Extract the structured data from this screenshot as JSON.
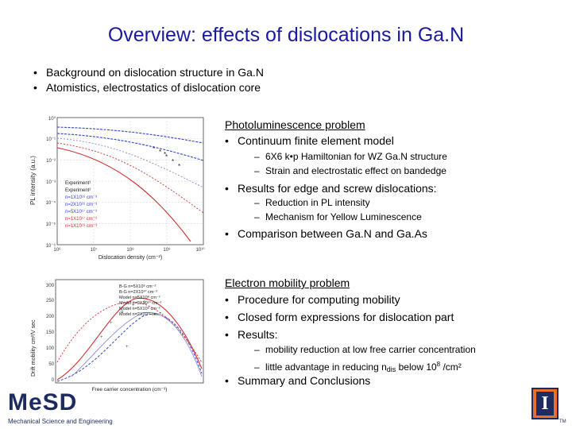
{
  "slide": {
    "title": "Overview: effects of dislocations in Ga.N",
    "bullets": [
      "Background on dislocation structure in Ga.N",
      "Atomistics, electrostatics of dislocation core"
    ]
  },
  "pl_section": {
    "heading": "Photoluminescence problem",
    "items": [
      {
        "text": "Continuum finite element model",
        "subs": [
          "6X6 k•p Hamiltonian for WZ Ga.N structure",
          "Strain and electrostatic effect on bandedge"
        ]
      },
      {
        "text": "Results for edge and screw dislocations:",
        "subs": [
          "Reduction in PL intensity",
          "Mechanism for Yellow Luminescence"
        ]
      },
      {
        "text": "Comparison between Ga.N and Ga.As",
        "subs": []
      }
    ]
  },
  "mobility_section": {
    "heading": "Electron mobility problem",
    "items": [
      "Procedure for computing mobility",
      "Closed form expressions for dislocation part",
      "Results:"
    ],
    "subs": {
      "first": "mobility reduction at low free carrier concentration",
      "second_pre": "little advantage in reducing n",
      "second_sub": "dis",
      "second_mid": " below 10",
      "second_sup": "8",
      "second_post": " /cm²"
    },
    "conclusion": "Summary and Conclusions"
  },
  "pl_chart": {
    "ylabel": "PL intensity (a.u.)",
    "xlabel": "Dislocation density (cm⁻²)",
    "y_ticks": [
      "10⁰",
      "10⁻¹",
      "10⁻²",
      "10⁻³",
      "10⁻⁴",
      "10⁻⁵",
      "10⁻⁶"
    ],
    "x_ticks": [
      "10⁶",
      "10⁷",
      "10⁸",
      "10⁹",
      "10¹⁰"
    ],
    "legend": [
      "Experiment¹",
      "Experiment²",
      "n=1X10¹⁶ cm⁻³",
      "n=2X10¹⁶ cm⁻³",
      "n=5X10¹⁷ cm⁻³",
      "n=1X10¹⁷ cm⁻³",
      "n=1X10¹⁸ cm⁻³"
    ]
  },
  "mob_chart": {
    "ylabel": "Drift mobility cm²/V sec",
    "xlabel": "Free carrier concentration (cm⁻³)",
    "y_ticks": [
      "300",
      "250",
      "200",
      "150",
      "100",
      "50",
      "0"
    ],
    "legend": [
      "B-G n=5X10⁸ cm⁻²",
      "B-G n=2X10¹⁰ cm⁻²",
      "Model n=5X10⁸ cm⁻²",
      "Model n=2X10¹⁰ cm⁻²",
      "Model n=5X10⁹ cm⁻²",
      "Model n=2X10¹¹ cm⁻²"
    ]
  },
  "logos": {
    "msd_text": "MeSD",
    "msd_caption": "Mechanical Science and Engineering",
    "illinois_mark": "I",
    "tm": "TM"
  },
  "colors": {
    "title": "#1a1a9c",
    "blue_curve": "#3344cc",
    "red_curve": "#d03030",
    "logo_orange": "#e8702a",
    "logo_navy": "#1d2b5e"
  }
}
